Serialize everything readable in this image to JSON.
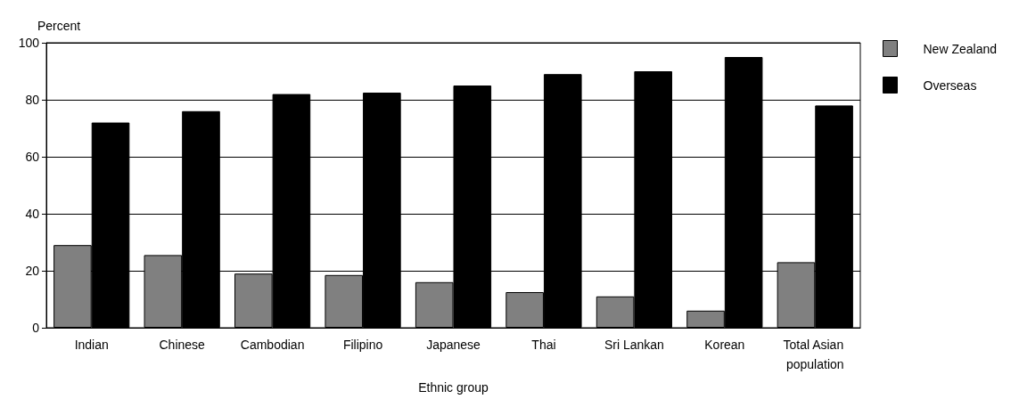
{
  "chart_data": {
    "type": "bar",
    "xlabel": "Ethnic group",
    "ylabel": "Percent",
    "categories": [
      "Indian",
      "Chinese",
      "Cambodian",
      "Filipino",
      "Japanese",
      "Thai",
      "Sri Lankan",
      "Korean",
      "Total Asian population"
    ],
    "series": [
      {
        "name": "New Zealand",
        "color": "#808080",
        "values": [
          29,
          25.5,
          19,
          18.5,
          16,
          12.5,
          11,
          6,
          23
        ]
      },
      {
        "name": "Overseas",
        "color": "#000000",
        "values": [
          72,
          76,
          82,
          82.5,
          85,
          89,
          90,
          95,
          78
        ]
      }
    ],
    "ylim": [
      0,
      100
    ],
    "yticks": [
      0,
      20,
      40,
      60,
      80,
      100
    ],
    "grid": "y",
    "legend": "right"
  }
}
